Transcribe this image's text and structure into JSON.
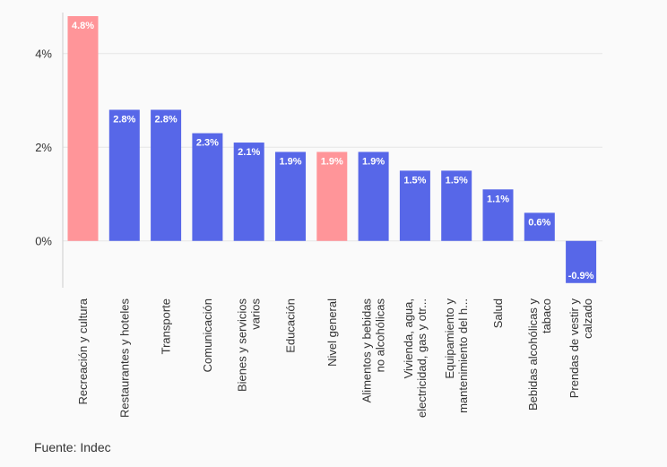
{
  "chart_data": {
    "type": "bar",
    "categories": [
      [
        "Recreación y cultura"
      ],
      [
        "Restaurantes y hoteles"
      ],
      [
        "Transporte"
      ],
      [
        "Comunicación"
      ],
      [
        "Bienes y servicios",
        "varios"
      ],
      [
        "Educación"
      ],
      [
        "Nivel general"
      ],
      [
        "Alimentos y bebidas",
        "no alcohólicas"
      ],
      [
        "Vivienda, agua,",
        "electricidad, gas y otr..."
      ],
      [
        "Equipamiento y",
        "mantenimiento del h..."
      ],
      [
        "Salud"
      ],
      [
        "Bebidas alcohólicas y",
        "tabaco"
      ],
      [
        "Prendas de vestir y",
        "calzado"
      ]
    ],
    "values": [
      4.8,
      2.8,
      2.8,
      2.3,
      2.1,
      1.9,
      1.9,
      1.9,
      1.5,
      1.5,
      1.1,
      0.6,
      -0.9
    ],
    "data_labels": [
      "4.8%",
      "2.8%",
      "2.8%",
      "2.3%",
      "2.1%",
      "1.9%",
      "1.9%",
      "1.9%",
      "1.5%",
      "1.5%",
      "1.1%",
      "0.6%",
      "-0.9%"
    ],
    "highlight": [
      true,
      false,
      false,
      false,
      false,
      false,
      true,
      false,
      false,
      false,
      false,
      false,
      false
    ],
    "yticks": [
      0,
      2,
      4
    ],
    "ytick_labels": [
      "0%",
      "2%",
      "4%"
    ],
    "ylim": [
      -1.0,
      4.8
    ],
    "grid": true,
    "colors": {
      "primary": "#5767e8",
      "highlight": "#ff9599",
      "grid": "#e6e6e6",
      "axis": "#cccccc"
    }
  },
  "source": "Fuente: Indec"
}
